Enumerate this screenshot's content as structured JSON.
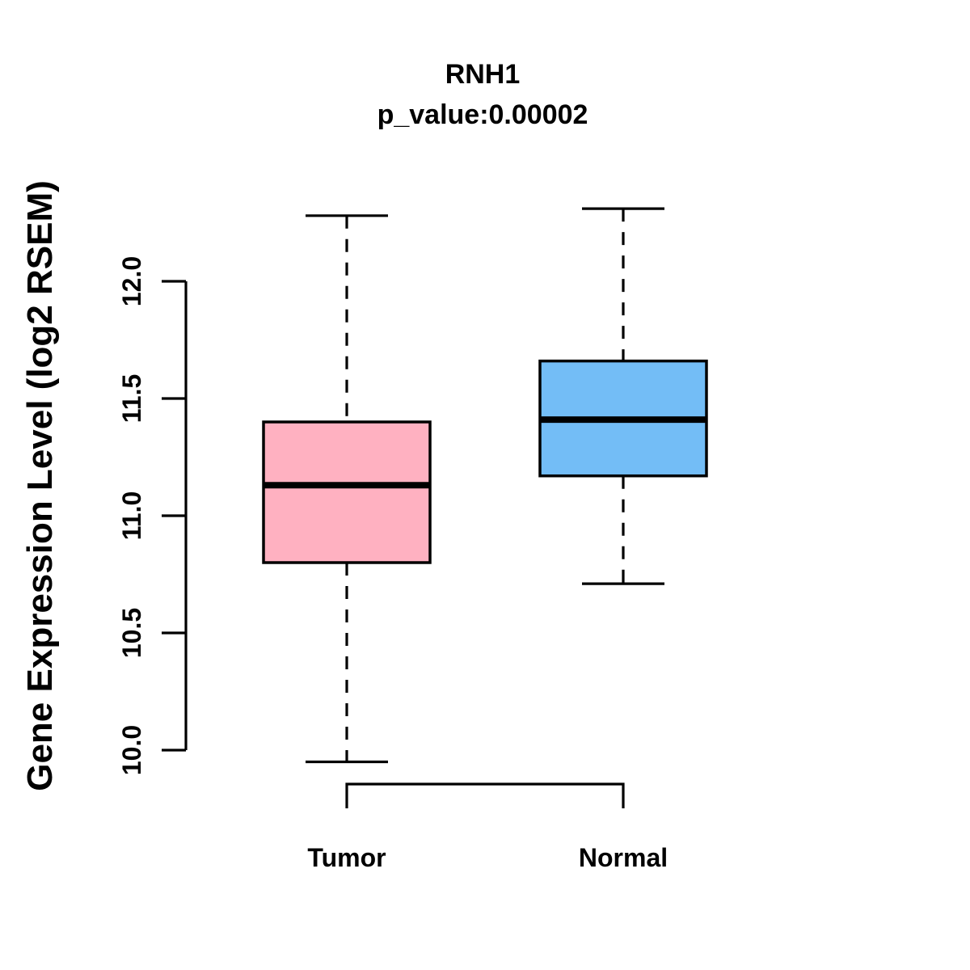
{
  "chart_data": {
    "type": "box",
    "title": "RNH1",
    "subtitle": "p_value:0.00002",
    "ylabel": "Gene Expression Level (log2 RSEM)",
    "xlabel": "",
    "categories": [
      "Tumor",
      "Normal"
    ],
    "series": [
      {
        "name": "Tumor",
        "color": "#FFB1C1",
        "whisker_low": 9.95,
        "q1": 10.8,
        "median": 11.13,
        "q3": 11.4,
        "whisker_high": 12.28
      },
      {
        "name": "Normal",
        "color": "#73BDF6",
        "whisker_low": 10.71,
        "q1": 11.17,
        "median": 11.41,
        "q3": 11.66,
        "whisker_high": 12.31
      }
    ],
    "yticks": [
      10.0,
      10.5,
      11.0,
      11.5,
      12.0
    ],
    "ytick_labels": [
      "10.0",
      "10.5",
      "11.0",
      "11.5",
      "12.0"
    ],
    "ylim": [
      9.95,
      12.31
    ],
    "grid": false,
    "legend": null,
    "box_border_color": "#000000",
    "median_color": "#000000",
    "axis_color": "#000000",
    "background_color": "#ffffff"
  }
}
